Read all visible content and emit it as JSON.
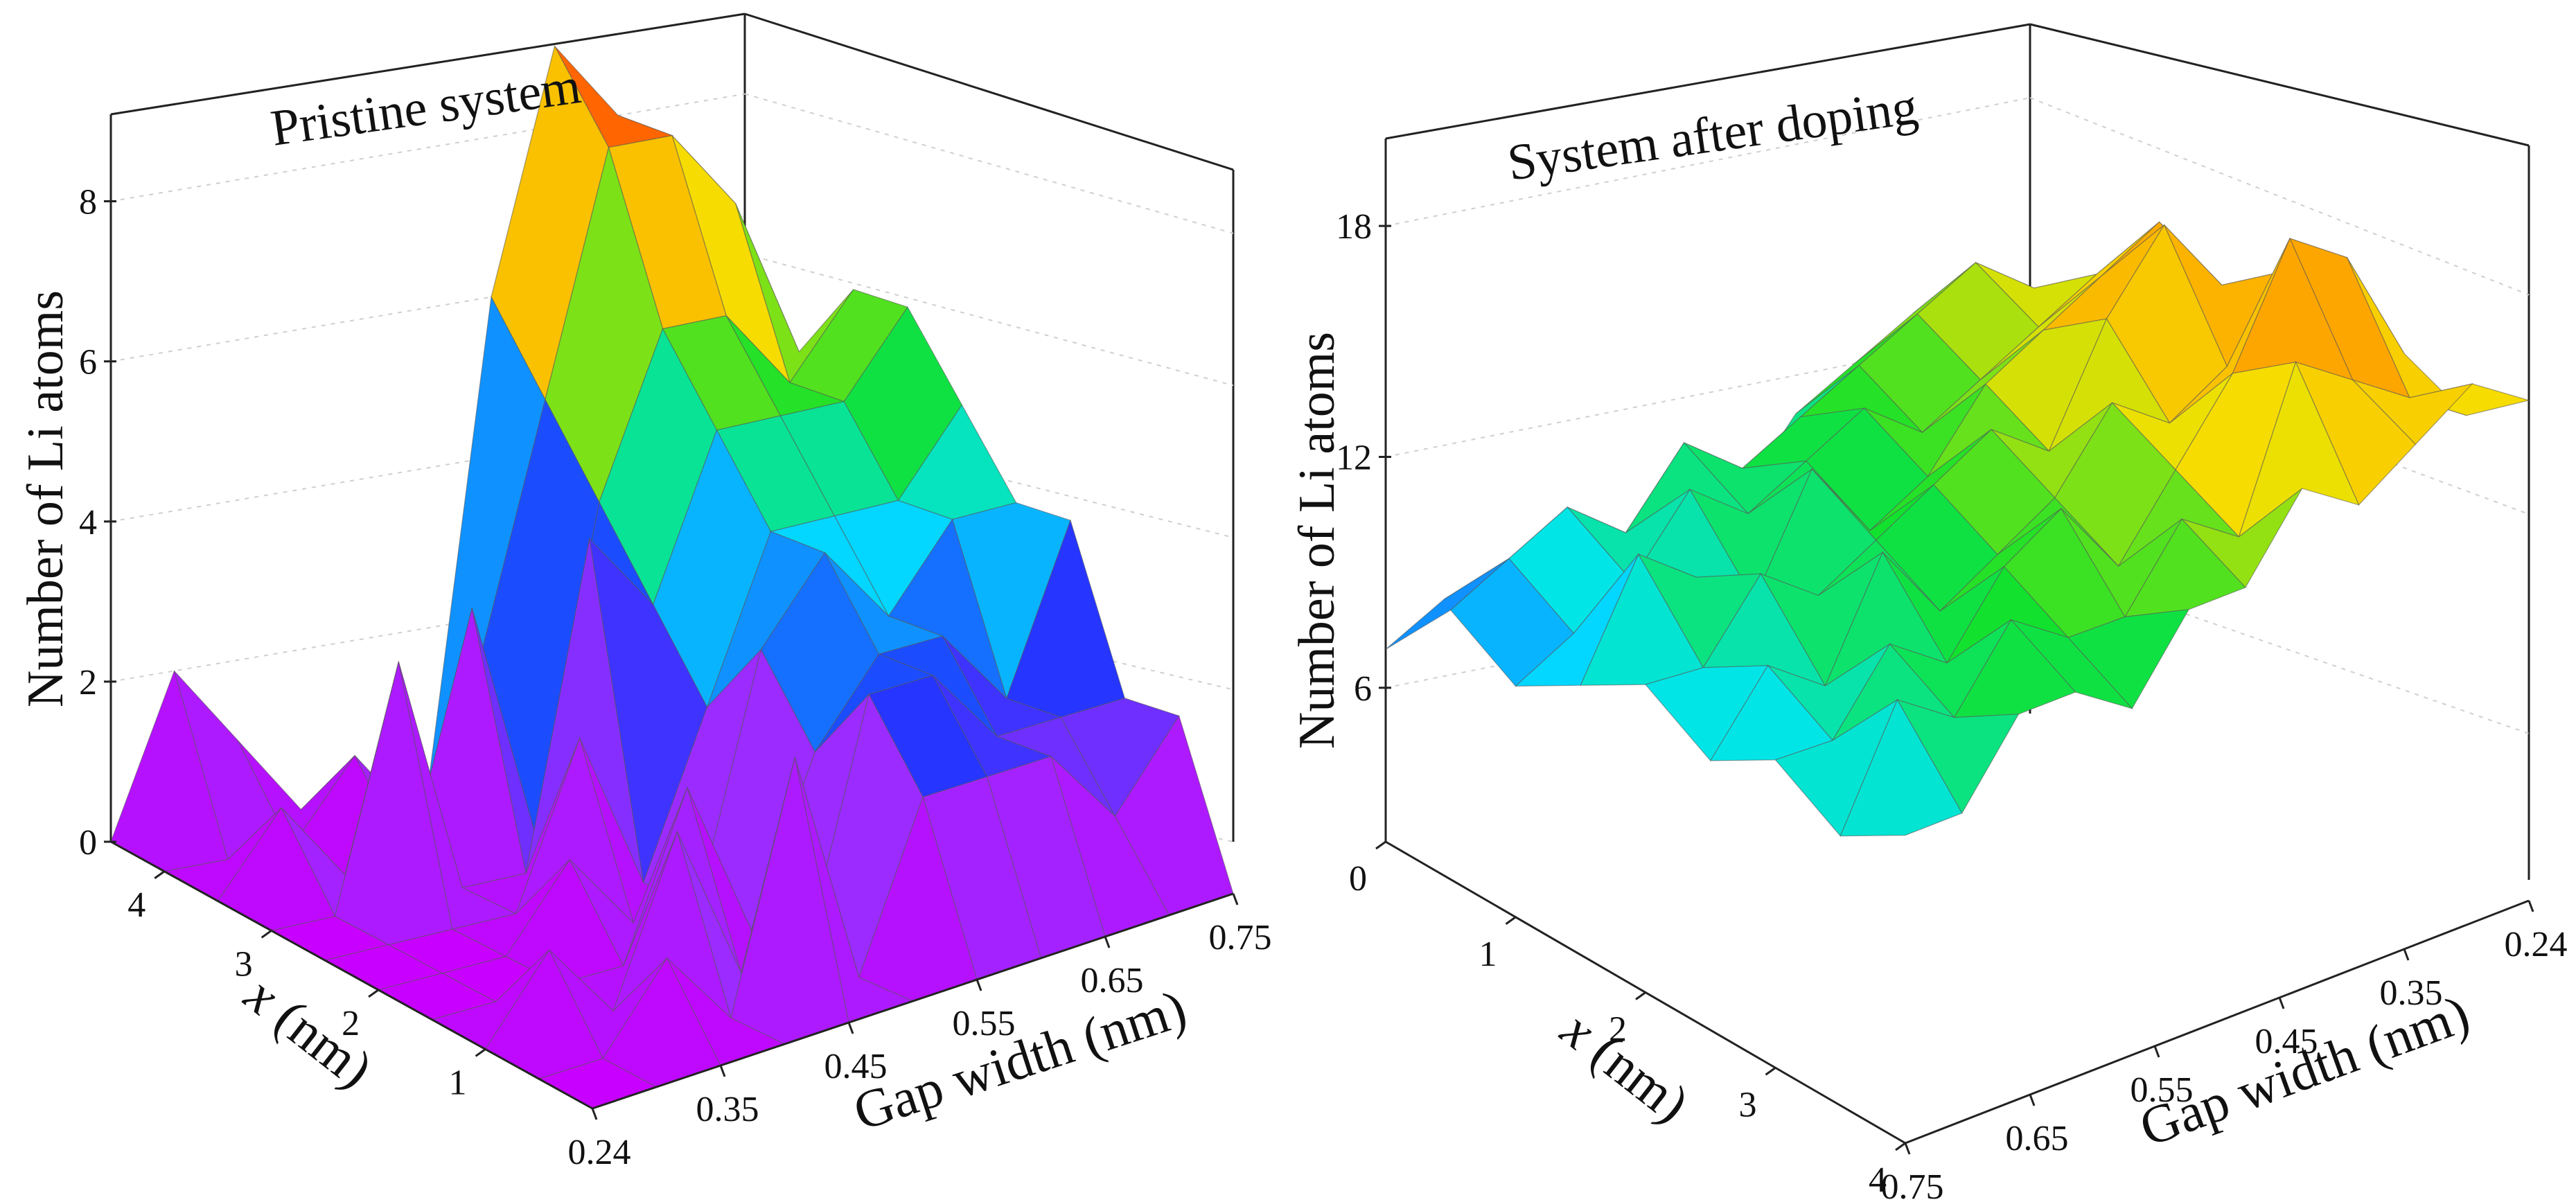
{
  "colors": {
    "magenta": "#c800ff",
    "purple": "#9a2cff",
    "blue": "#1f35ff",
    "cyan": "#00e5ff",
    "green": "#12e12b",
    "yellow": "#f5e000",
    "orange": "#ff9a00",
    "red": "#ff1a00"
  },
  "chart_data": [
    {
      "type": "surface3d",
      "title": "Pristine system",
      "zlabel": "Number of Li atoms",
      "xlabel": "x (nm)",
      "ylabel": "Gap width (nm)",
      "x_ticks": [
        "1",
        "2",
        "3",
        "4"
      ],
      "gap_ticks": [
        "0.24",
        "0.35",
        "0.45",
        "0.55",
        "0.65",
        "0.75"
      ],
      "z_ticks": [
        "0",
        "2",
        "4",
        "6",
        "8"
      ],
      "zlim": [
        0,
        9
      ],
      "gap_values": [
        0.24,
        0.35,
        0.45,
        0.55,
        0.65,
        0.75
      ],
      "x_values": [
        0,
        0.5,
        1.0,
        1.5,
        2.0,
        2.5,
        3.0,
        3.5,
        4.0,
        4.5
      ],
      "z": [
        [
          0,
          0,
          0,
          0,
          0,
          0,
          0,
          0,
          0,
          0
        ],
        [
          0,
          0,
          1,
          0,
          0,
          0,
          0,
          1,
          0,
          2
        ],
        [
          0,
          1,
          0,
          0,
          0,
          0,
          3,
          0,
          0,
          1
        ],
        [
          0,
          0,
          2,
          0,
          1,
          0,
          0,
          0,
          1,
          0
        ],
        [
          0,
          3,
          0,
          2,
          0,
          2,
          0,
          3,
          0,
          0
        ],
        [
          0,
          0,
          0,
          0,
          0,
          0,
          4,
          0,
          2,
          0
        ],
        [
          0,
          2,
          3,
          2,
          3,
          2,
          3,
          4,
          5,
          6
        ],
        [
          0,
          2,
          3,
          3,
          4,
          4,
          5,
          6,
          8,
          9
        ],
        [
          0,
          2,
          2,
          3,
          3,
          4,
          5,
          6,
          8,
          8
        ],
        [
          0,
          1,
          2,
          2,
          4,
          4,
          5,
          5,
          7,
          7
        ],
        [
          0,
          2,
          2,
          4,
          4,
          5,
          6,
          6,
          5,
          6
        ]
      ]
    },
    {
      "type": "surface3d",
      "title": "System after doping",
      "zlabel": "Number of Li atoms",
      "xlabel": "x (nm)",
      "ylabel": "Gap width (nm)",
      "x_ticks": [
        "0",
        "1",
        "2",
        "3",
        "4"
      ],
      "gap_ticks": [
        "0.75",
        "0.65",
        "0.55",
        "0.45",
        "0.35",
        "0.24"
      ],
      "z_ticks": [
        "6",
        "12",
        "18"
      ],
      "zlim": [
        2,
        20
      ],
      "gap_values": [
        0.75,
        0.65,
        0.55,
        0.45,
        0.35,
        0.24
      ],
      "x_values": [
        0,
        0.5,
        1.0,
        1.5,
        2.0,
        2.5,
        3.0,
        3.5,
        4.0
      ],
      "z": [
        [
          7,
          9,
          8,
          9,
          10,
          9,
          10,
          9,
          10
        ],
        [
          8,
          10,
          9,
          12,
          10,
          11,
          10,
          12,
          10
        ],
        [
          7,
          11,
          10,
          11,
          12,
          10,
          12,
          11,
          12
        ],
        [
          9,
          10,
          12,
          10,
          11,
          13,
          11,
          13,
          12
        ],
        [
          8,
          12,
          11,
          13,
          12,
          11,
          13,
          12,
          11
        ],
        [
          10,
          11,
          12,
          11,
          13,
          12,
          14,
          12,
          13
        ],
        [
          9,
          12,
          13,
          12,
          14,
          13,
          12,
          14,
          13
        ],
        [
          11,
          13,
          12,
          14,
          13,
          15,
          14,
          13,
          15
        ],
        [
          12,
          14,
          13,
          15,
          16,
          14,
          16,
          17,
          14
        ],
        [
          13,
          15,
          14,
          16,
          18,
          15,
          19,
          16,
          15
        ],
        [
          13,
          14,
          15,
          17,
          16,
          17,
          18,
          15,
          16
        ],
        [
          12,
          13,
          14,
          15,
          14,
          16,
          15,
          14,
          15
        ]
      ]
    }
  ]
}
